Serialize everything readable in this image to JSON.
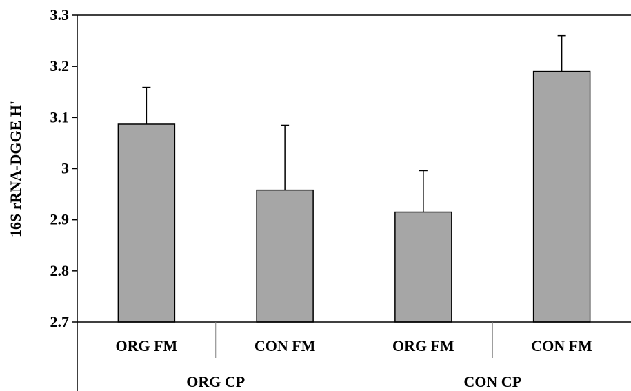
{
  "chart_data": {
    "type": "bar",
    "ylabel": "16S rRNA-DGGE H'",
    "ylim": [
      2.7,
      3.3
    ],
    "yticks": [
      "2.7",
      "2.8",
      "2.9",
      "3",
      "3.1",
      "3.2",
      "3.3"
    ],
    "ytick_values": [
      2.7,
      2.8,
      2.9,
      3.0,
      3.1,
      3.2,
      3.3
    ],
    "categories": [
      "ORG FM",
      "CON FM",
      "ORG FM",
      "CON FM"
    ],
    "groups": [
      {
        "label": "ORG CP",
        "span": 2
      },
      {
        "label": "CON CP",
        "span": 2
      }
    ],
    "values": [
      3.087,
      2.958,
      2.915,
      3.19
    ],
    "error_plus": [
      0.072,
      0.127,
      0.081,
      0.07
    ],
    "grid": false,
    "legend": "none",
    "colors": {
      "bar_fill": "#a6a6a6",
      "bar_stroke": "#000000",
      "axis": "#000000"
    }
  }
}
